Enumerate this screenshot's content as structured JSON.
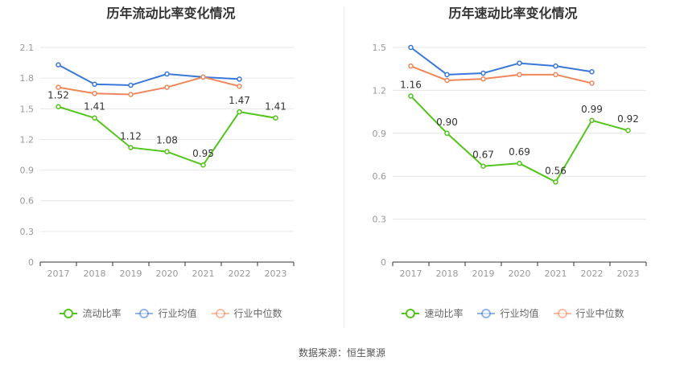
{
  "source": "数据来源：恒生聚源",
  "chart_data": [
    {
      "type": "line",
      "title": "历年流动比率变化情况",
      "categories": [
        "2017",
        "2018",
        "2019",
        "2020",
        "2021",
        "2022",
        "2023"
      ],
      "ylim": [
        0,
        2.1
      ],
      "yticks": [
        "0",
        "0.3",
        "0.6",
        "0.9",
        "1.2",
        "1.5",
        "1.8",
        "2.1"
      ],
      "grid": true,
      "legend_position": "bottom",
      "series": [
        {
          "name": "流动比率",
          "color": "#52c41a",
          "values": [
            1.52,
            1.41,
            1.12,
            1.08,
            0.95,
            1.47,
            1.41
          ],
          "labels": [
            "1.52",
            "1.41",
            "1.12",
            "1.08",
            "0.95",
            "1.47",
            "1.41"
          ]
        },
        {
          "name": "行业均值",
          "color": "#3a78d8",
          "values": [
            1.93,
            1.74,
            1.73,
            1.84,
            1.81,
            1.79,
            null
          ]
        },
        {
          "name": "行业中位数",
          "color": "#f0875a",
          "values": [
            1.71,
            1.65,
            1.64,
            1.71,
            1.81,
            1.72,
            null
          ]
        }
      ]
    },
    {
      "type": "line",
      "title": "历年速动比率变化情况",
      "categories": [
        "2017",
        "2018",
        "2019",
        "2020",
        "2021",
        "2022",
        "2023"
      ],
      "ylim": [
        0,
        1.5
      ],
      "yticks": [
        "0",
        "0.3",
        "0.6",
        "0.9",
        "1.2",
        "1.5"
      ],
      "grid": true,
      "legend_position": "bottom",
      "series": [
        {
          "name": "速动比率",
          "color": "#52c41a",
          "values": [
            1.16,
            0.9,
            0.67,
            0.69,
            0.56,
            0.99,
            0.92
          ],
          "labels": [
            "1.16",
            "0.90",
            "0.67",
            "0.69",
            "0.56",
            "0.99",
            "0.92"
          ]
        },
        {
          "name": "行业均值",
          "color": "#3a78d8",
          "values": [
            1.5,
            1.31,
            1.32,
            1.39,
            1.37,
            1.33,
            null
          ]
        },
        {
          "name": "行业中位数",
          "color": "#f0875a",
          "values": [
            1.37,
            1.27,
            1.28,
            1.31,
            1.31,
            1.25,
            null
          ]
        }
      ]
    }
  ]
}
